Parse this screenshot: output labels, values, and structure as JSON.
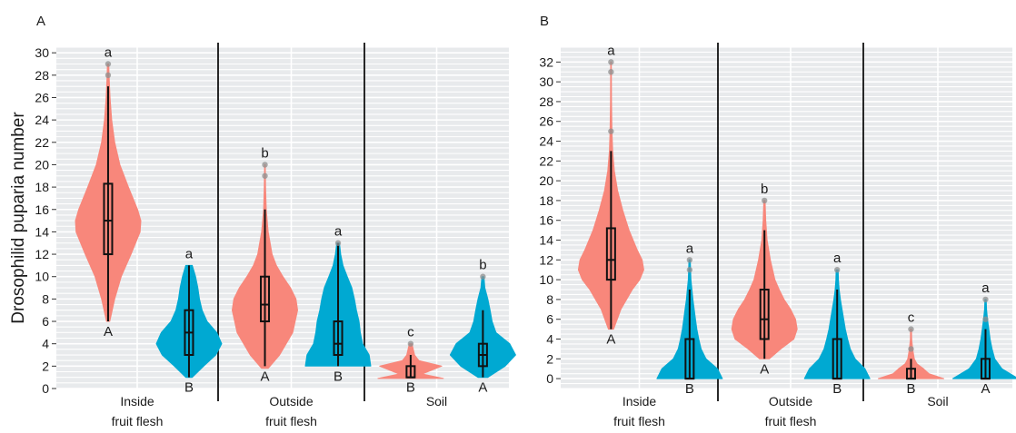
{
  "y_label": "Drosophilid puparia number",
  "colors": {
    "violin_red": "#f8877b",
    "violin_blue": "#00a9d2",
    "panel_bg": "#e8eaec",
    "grid": "#ffffff",
    "divider": "#111111"
  },
  "chart_data": [
    {
      "panel_label": "A",
      "type": "violin",
      "ylabel": "Drosophilid puparia number",
      "ylim": [
        0,
        30.5
      ],
      "yticks": [
        0,
        2,
        4,
        6,
        8,
        10,
        12,
        14,
        16,
        18,
        20,
        22,
        24,
        26,
        28,
        30
      ],
      "groups": [
        {
          "name": "Inside fruit flesh",
          "label_lines": [
            "Inside",
            "fruit flesh"
          ]
        },
        {
          "name": "Outside fruit flesh",
          "label_lines": [
            "Outside",
            "fruit flesh"
          ]
        },
        {
          "name": "Soil",
          "label_lines": [
            "Soil"
          ]
        }
      ],
      "violins": [
        {
          "group": 0,
          "series": "red",
          "min": 6,
          "q1": 12,
          "median": 15,
          "q3": 18.3,
          "max": 27,
          "outliers": [
            28,
            29
          ],
          "top_letter": "a",
          "bottom_letter": "A",
          "shape": [
            [
              6,
              0.05
            ],
            [
              8,
              0.2
            ],
            [
              10,
              0.4
            ],
            [
              12,
              0.7
            ],
            [
              14,
              0.98
            ],
            [
              15,
              1.0
            ],
            [
              16,
              0.9
            ],
            [
              18,
              0.62
            ],
            [
              20,
              0.36
            ],
            [
              22,
              0.2
            ],
            [
              24,
              0.11
            ],
            [
              26,
              0.06
            ],
            [
              28,
              0.03
            ],
            [
              29,
              0.02
            ]
          ]
        },
        {
          "group": 0,
          "series": "blue",
          "min": 1,
          "q1": 3,
          "median": 5,
          "q3": 7,
          "max": 11,
          "outliers": [],
          "top_letter": "a",
          "bottom_letter": "B",
          "shape": [
            [
              1,
              0.1
            ],
            [
              2,
              0.45
            ],
            [
              3,
              0.82
            ],
            [
              4,
              1.0
            ],
            [
              5,
              0.85
            ],
            [
              6,
              0.55
            ],
            [
              7,
              0.4
            ],
            [
              8,
              0.32
            ],
            [
              9,
              0.27
            ],
            [
              10,
              0.2
            ],
            [
              11,
              0.1
            ]
          ]
        },
        {
          "group": 1,
          "series": "red",
          "min": 2,
          "q1": 6,
          "median": 7.5,
          "q3": 10,
          "max": 16,
          "outliers": [
            19,
            20
          ],
          "top_letter": "b",
          "bottom_letter": "A",
          "shape": [
            [
              1.8,
              0.1
            ],
            [
              3,
              0.45
            ],
            [
              5,
              0.85
            ],
            [
              7,
              1.0
            ],
            [
              8,
              0.95
            ],
            [
              9,
              0.78
            ],
            [
              10,
              0.55
            ],
            [
              11,
              0.35
            ],
            [
              12,
              0.22
            ],
            [
              14,
              0.1
            ],
            [
              16,
              0.04
            ],
            [
              18,
              0.02
            ],
            [
              20,
              0.01
            ]
          ]
        },
        {
          "group": 1,
          "series": "blue",
          "min": 2,
          "q1": 3,
          "median": 4,
          "q3": 6,
          "max": 13,
          "outliers": [
            13
          ],
          "top_letter": "a",
          "bottom_letter": "B",
          "shape": [
            [
              2,
              1.0
            ],
            [
              3,
              0.95
            ],
            [
              4,
              0.75
            ],
            [
              5,
              0.68
            ],
            [
              6,
              0.64
            ],
            [
              7,
              0.56
            ],
            [
              8,
              0.5
            ],
            [
              9,
              0.42
            ],
            [
              10,
              0.28
            ],
            [
              11,
              0.15
            ],
            [
              12,
              0.08
            ],
            [
              13,
              0.04
            ]
          ]
        },
        {
          "group": 2,
          "series": "red",
          "min": 1,
          "q1": 1,
          "median": 1,
          "q3": 2,
          "max": 3,
          "outliers": [
            4
          ],
          "top_letter": "c",
          "bottom_letter": "B",
          "shape": [
            [
              0.9,
              1.0
            ],
            [
              1.3,
              0.35
            ],
            [
              2,
              0.95
            ],
            [
              2.5,
              0.25
            ],
            [
              3,
              0.12
            ],
            [
              4,
              0.04
            ]
          ]
        },
        {
          "group": 2,
          "series": "blue",
          "min": 1,
          "q1": 2,
          "median": 3,
          "q3": 4,
          "max": 7,
          "outliers": [
            10
          ],
          "top_letter": "b",
          "bottom_letter": "A",
          "shape": [
            [
              1,
              0.15
            ],
            [
              2,
              0.68
            ],
            [
              3,
              1.0
            ],
            [
              4,
              0.82
            ],
            [
              5,
              0.4
            ],
            [
              6,
              0.28
            ],
            [
              7,
              0.22
            ],
            [
              8,
              0.15
            ],
            [
              9,
              0.06
            ],
            [
              10,
              0.03
            ]
          ]
        }
      ]
    },
    {
      "panel_label": "B",
      "type": "violin",
      "ylabel": "",
      "ylim": [
        -1,
        33.5
      ],
      "yticks": [
        0,
        2,
        4,
        6,
        8,
        10,
        12,
        14,
        16,
        18,
        20,
        22,
        24,
        26,
        28,
        30,
        32
      ],
      "groups": [
        {
          "name": "Inside fruit flesh",
          "label_lines": [
            "Inside",
            "fruit flesh"
          ]
        },
        {
          "name": "Outside fruit flesh",
          "label_lines": [
            "Outside",
            "fruit flesh"
          ]
        },
        {
          "name": "Soil",
          "label_lines": [
            "Soil"
          ]
        }
      ],
      "violins": [
        {
          "group": 0,
          "series": "red",
          "min": 5,
          "q1": 10,
          "median": 12,
          "q3": 15.2,
          "max": 23,
          "outliers": [
            25,
            31,
            32
          ],
          "top_letter": "a",
          "bottom_letter": "A",
          "shape": [
            [
              5,
              0.08
            ],
            [
              7,
              0.3
            ],
            [
              9,
              0.65
            ],
            [
              10,
              0.88
            ],
            [
              11,
              1.0
            ],
            [
              12,
              0.95
            ],
            [
              13,
              0.8
            ],
            [
              15,
              0.55
            ],
            [
              17,
              0.36
            ],
            [
              19,
              0.2
            ],
            [
              21,
              0.1
            ],
            [
              23,
              0.05
            ],
            [
              25,
              0.03
            ],
            [
              28,
              0.015
            ],
            [
              32,
              0.01
            ]
          ]
        },
        {
          "group": 0,
          "series": "blue",
          "min": 0,
          "q1": 0,
          "median": 0,
          "q3": 4,
          "max": 9,
          "outliers": [
            11,
            12
          ],
          "top_letter": "a",
          "bottom_letter": "B",
          "shape": [
            [
              0,
              1.0
            ],
            [
              1,
              0.85
            ],
            [
              2,
              0.5
            ],
            [
              3,
              0.35
            ],
            [
              4,
              0.28
            ],
            [
              5,
              0.22
            ],
            [
              6,
              0.18
            ],
            [
              7,
              0.14
            ],
            [
              8,
              0.1
            ],
            [
              9,
              0.07
            ],
            [
              10,
              0.04
            ],
            [
              11,
              0.03
            ],
            [
              12,
              0.02
            ]
          ]
        },
        {
          "group": 1,
          "series": "red",
          "min": 2,
          "q1": 4,
          "median": 6,
          "q3": 9,
          "max": 15,
          "outliers": [
            18
          ],
          "top_letter": "b",
          "bottom_letter": "A",
          "shape": [
            [
              2,
              0.15
            ],
            [
              3,
              0.5
            ],
            [
              4,
              0.9
            ],
            [
              5,
              1.0
            ],
            [
              6,
              0.95
            ],
            [
              7,
              0.8
            ],
            [
              8,
              0.6
            ],
            [
              9,
              0.45
            ],
            [
              10,
              0.32
            ],
            [
              12,
              0.18
            ],
            [
              14,
              0.08
            ],
            [
              16,
              0.04
            ],
            [
              18,
              0.02
            ]
          ]
        },
        {
          "group": 1,
          "series": "blue",
          "min": 0,
          "q1": 0,
          "median": 0,
          "q3": 4,
          "max": 9,
          "outliers": [
            11
          ],
          "top_letter": "a",
          "bottom_letter": "B",
          "shape": [
            [
              0,
              1.0
            ],
            [
              1,
              0.85
            ],
            [
              2,
              0.55
            ],
            [
              3,
              0.4
            ],
            [
              4,
              0.32
            ],
            [
              5,
              0.25
            ],
            [
              6,
              0.2
            ],
            [
              7,
              0.15
            ],
            [
              8,
              0.1
            ],
            [
              9,
              0.06
            ],
            [
              10,
              0.04
            ],
            [
              11,
              0.03
            ]
          ]
        },
        {
          "group": 2,
          "series": "red",
          "min": 0,
          "q1": 0,
          "median": 0,
          "q3": 1,
          "max": 2,
          "outliers": [
            3,
            5
          ],
          "top_letter": "c",
          "bottom_letter": "B",
          "shape": [
            [
              0,
              1.0
            ],
            [
              0.5,
              0.55
            ],
            [
              1,
              0.38
            ],
            [
              1.5,
              0.18
            ],
            [
              2,
              0.1
            ],
            [
              3,
              0.05
            ],
            [
              4,
              0.02
            ],
            [
              5,
              0.015
            ]
          ]
        },
        {
          "group": 2,
          "series": "blue",
          "min": 0,
          "q1": 0,
          "median": 0,
          "q3": 2,
          "max": 5,
          "outliers": [
            6,
            8
          ],
          "top_letter": "a",
          "bottom_letter": "A",
          "shape": [
            [
              0,
              1.0
            ],
            [
              1,
              0.5
            ],
            [
              2,
              0.28
            ],
            [
              3,
              0.2
            ],
            [
              4,
              0.14
            ],
            [
              5,
              0.1
            ],
            [
              6,
              0.06
            ],
            [
              7,
              0.03
            ],
            [
              8,
              0.02
            ]
          ]
        }
      ]
    }
  ]
}
